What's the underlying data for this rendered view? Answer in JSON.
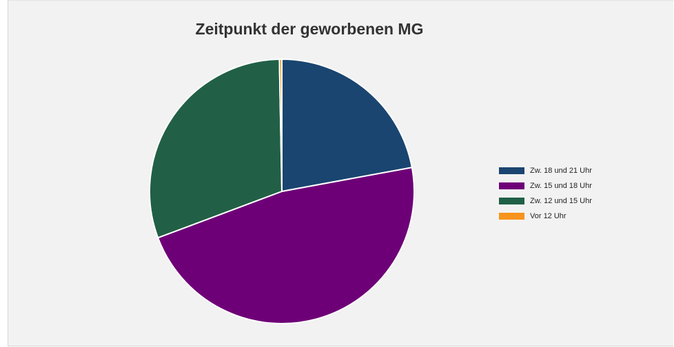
{
  "chart_data": {
    "type": "pie",
    "title": "Zeitpunkt der geworbenen MG",
    "slices": [
      {
        "label": "Zw. 18 und 21 Uhr",
        "value": 22.1,
        "color": "#1a4570"
      },
      {
        "label": "Zw. 15 und 18 Uhr",
        "value": 47.2,
        "color": "#6e0077"
      },
      {
        "label": "Zw. 12 und 15 Uhr",
        "value": 30.4,
        "color": "#216046"
      },
      {
        "label": "Vor 12 Uhr",
        "value": 0.3,
        "color": "#f7941d"
      }
    ],
    "legend_position": "right"
  }
}
